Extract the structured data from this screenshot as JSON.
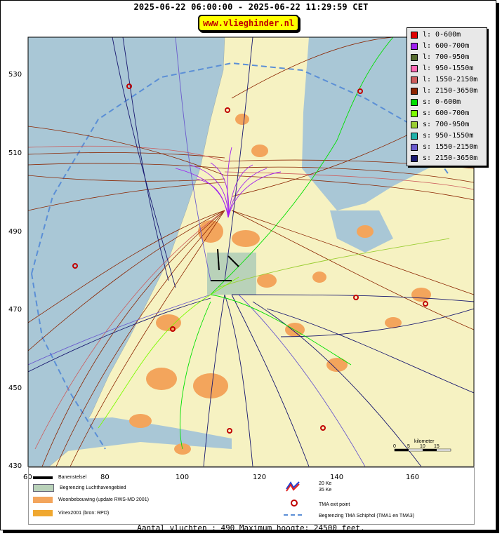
{
  "header": {
    "title": "2025-06-22 06:00:00 - 2025-06-22 11:29:59 CET",
    "site_label": "www.vlieghinder.nl"
  },
  "axes": {
    "x_ticks": [
      "60",
      "80",
      "100",
      "120",
      "140",
      "160"
    ],
    "y_ticks": [
      "530",
      "510",
      "490",
      "470",
      "450",
      "430"
    ]
  },
  "scalebar": {
    "label": "kilometer",
    "ticks": [
      "0",
      "5",
      "10",
      "15"
    ]
  },
  "legend_altitude": [
    {
      "label": "l: 0-600m",
      "color": "#e00000"
    },
    {
      "label": "l: 600-700m",
      "color": "#a020f0"
    },
    {
      "label": "l: 700-950m",
      "color": "#556b2f"
    },
    {
      "label": "l: 950-1550m",
      "color": "#ff69b4"
    },
    {
      "label": "l: 1550-2150m",
      "color": "#cd5c5c"
    },
    {
      "label": "l: 2150-3650m",
      "color": "#8b2500"
    },
    {
      "label": "s: 0-600m",
      "color": "#00e000"
    },
    {
      "label": "s: 600-700m",
      "color": "#7cfc00"
    },
    {
      "label": "s: 700-950m",
      "color": "#9acd32"
    },
    {
      "label": "s: 950-1550m",
      "color": "#20b2aa"
    },
    {
      "label": "s: 1550-2150m",
      "color": "#6a5acd"
    },
    {
      "label": "s: 2150-3650m",
      "color": "#191970"
    }
  ],
  "legend_map": {
    "runways": "Banenstelsel",
    "airport_boundary": "Begrenzing Luchthavengebied",
    "housing": "Woonbebouwing (update RWS-MD 2001)",
    "vinex": "Vinex2001 (bron: RPD)",
    "ke20": "20 Ke",
    "ke35": "35 Ke",
    "tma_exit": "TMA exit point",
    "tma_boundary": "Begrenzing TMA Schiphol  (TMA1 en TMA3)"
  },
  "footer": {
    "text": "Aantal vluchten : 490 Maximum hoogte: 24500 feet."
  },
  "colors": {
    "sea": "#a9c7d6",
    "land": "#f6f2c2",
    "housing": "#f3a55c",
    "airport": "#b9d2b9"
  }
}
